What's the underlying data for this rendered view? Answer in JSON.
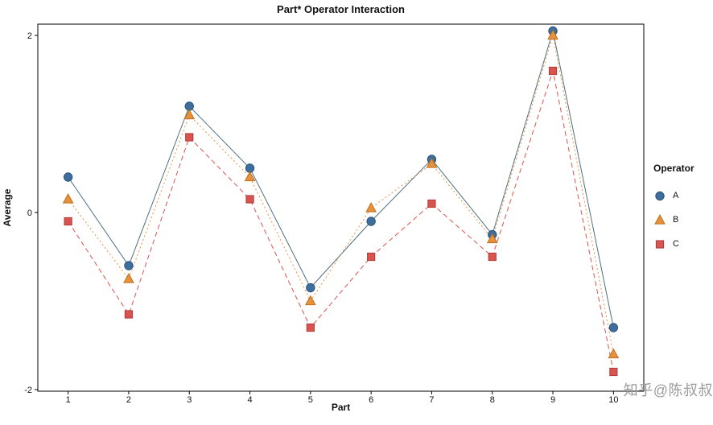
{
  "chart_data": {
    "type": "line",
    "title": "Part* Operator Interaction",
    "xlabel": "Part",
    "ylabel": "Average",
    "x": [
      1,
      2,
      3,
      4,
      5,
      6,
      7,
      8,
      9,
      10
    ],
    "xticks": [
      1,
      2,
      3,
      4,
      5,
      6,
      7,
      8,
      9,
      10
    ],
    "yticks": [
      -2,
      0,
      2
    ],
    "xlim": [
      0.5,
      10.5
    ],
    "ylim": [
      -2,
      2
    ],
    "grid": false,
    "legend": {
      "title": "Operator",
      "position": "right"
    },
    "series": [
      {
        "name": "A",
        "marker": "circle",
        "color": "#3D6E9E",
        "marker_edge": "#2B5579",
        "line_color": "#4E6F7E",
        "line_style": "solid",
        "values": [
          0.4,
          -0.6,
          1.2,
          0.5,
          -0.85,
          -0.1,
          0.6,
          -0.25,
          2.05,
          -1.3
        ]
      },
      {
        "name": "B",
        "marker": "triangle",
        "color": "#E8913C",
        "marker_edge": "#BF6F1E",
        "line_color": "#E8913C",
        "line_style": "dotted",
        "values": [
          0.15,
          -0.75,
          1.1,
          0.4,
          -1.0,
          0.05,
          0.55,
          -0.3,
          2.0,
          -1.6
        ]
      },
      {
        "name": "C",
        "marker": "square",
        "color": "#D9534F",
        "marker_edge": "#B23A37",
        "line_color": "#D9534F",
        "line_style": "dashed",
        "values": [
          -0.1,
          -1.15,
          0.85,
          0.15,
          -1.3,
          -0.5,
          0.1,
          -0.5,
          1.6,
          -1.8
        ]
      }
    ]
  },
  "watermark": "知乎@陈叔叔"
}
